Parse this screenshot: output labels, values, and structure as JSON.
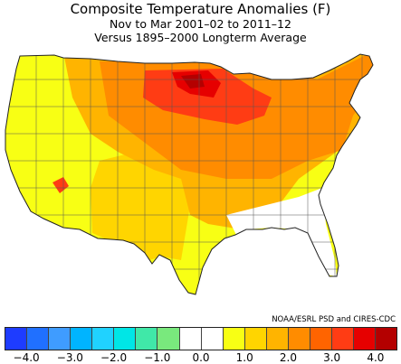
{
  "title": {
    "line1": "Composite Temperature Anomalies (F)",
    "line2": "Nov to Mar 2001–02 to 2011–12",
    "line3": "Versus 1895–2000 Longterm Average"
  },
  "credit": "NOAA/ESRL PSD and CIRES-CDC",
  "legend": {
    "colors": [
      "#1e3cff",
      "#2070ff",
      "#3f9cff",
      "#00b4ff",
      "#20d2ff",
      "#00e6e6",
      "#40e8a8",
      "#79e97d",
      "#ffffff",
      "#ffffff",
      "#f8ff14",
      "#ffd500",
      "#ffb400",
      "#ff8c00",
      "#ff6400",
      "#ff3c14",
      "#e60000",
      "#b40000"
    ],
    "tick_labels": [
      "−4.0",
      "−3.0",
      "−2.0",
      "−1.0",
      "0.0",
      "1.0",
      "2.0",
      "3.0",
      "4.0"
    ]
  },
  "regions": [
    {
      "name": "northern-plains-upper-midwest",
      "anomaly": 3.5,
      "color": "#ff3c14"
    },
    {
      "name": "northeast-great-lakes",
      "anomaly": 2.5,
      "color": "#ff8c00"
    },
    {
      "name": "central-plains",
      "anomaly": 2.0,
      "color": "#ffb400"
    },
    {
      "name": "southwest",
      "anomaly": 1.5,
      "color": "#ffd500"
    },
    {
      "name": "pacific-northwest-california",
      "anomaly": 0.5,
      "color": "#f8ff14"
    },
    {
      "name": "southeast",
      "anomaly": 0.0,
      "color": "#ffffff"
    }
  ]
}
